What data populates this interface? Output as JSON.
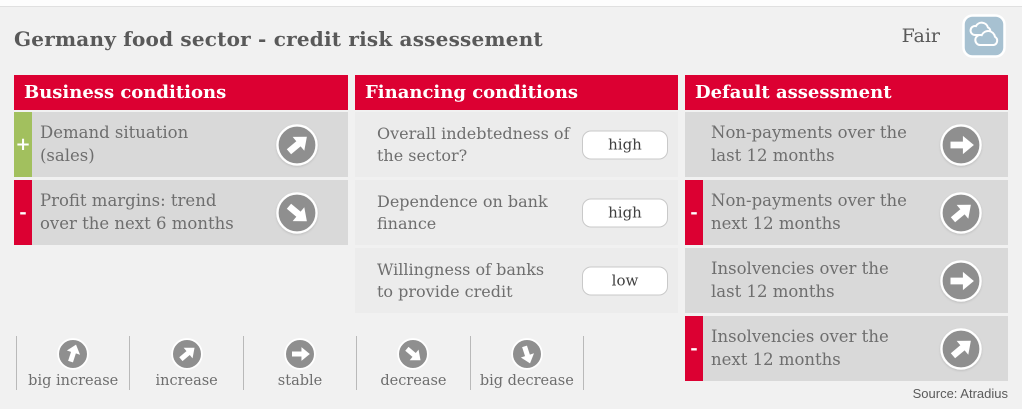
{
  "page": {
    "title": "Germany food sector - credit risk assessement",
    "rating_label": "Fair",
    "rating_icon": "clouds-icon",
    "source": "Source: Atradius"
  },
  "colors": {
    "accent_red": "#dc0032",
    "positive_green": "#a2c05e",
    "icon_gray": "#8f8f8f",
    "rating_blue": "#a7c1d1"
  },
  "columns": {
    "business": {
      "header": "Business conditions",
      "rows": [
        {
          "label": "Demand situation\n(sales)",
          "marker": "+",
          "marker_type": "positive",
          "trend": "increase"
        },
        {
          "label": "Profit margins: trend\nover the next 6 months",
          "marker": "-",
          "marker_type": "negative",
          "trend": "decrease"
        }
      ]
    },
    "financing": {
      "header": "Financing conditions",
      "rows": [
        {
          "label": "Overall indebtedness of\nthe sector?",
          "level": "high"
        },
        {
          "label": "Dependence on bank\nfinance",
          "level": "high"
        },
        {
          "label": "Willingness of banks\nto provide credit",
          "level": "low"
        }
      ]
    },
    "default": {
      "header": "Default assessment",
      "rows": [
        {
          "label": "Non-payments over the\nlast 12 months",
          "trend": "stable"
        },
        {
          "label": "Non-payments over the\nnext 12 months",
          "marker": "-",
          "marker_type": "negative",
          "trend": "increase"
        },
        {
          "label": "Insolvencies over the\nlast 12 months",
          "trend": "stable"
        },
        {
          "label": "Insolvencies over the\nnext 12 months",
          "marker": "-",
          "marker_type": "negative",
          "trend": "increase"
        }
      ]
    }
  },
  "legend": {
    "items": [
      {
        "label": "big increase",
        "trend": "big_increase"
      },
      {
        "label": "increase",
        "trend": "increase"
      },
      {
        "label": "stable",
        "trend": "stable"
      },
      {
        "label": "decrease",
        "trend": "decrease"
      },
      {
        "label": "big decrease",
        "trend": "big_decrease"
      }
    ]
  },
  "chart_data": {
    "type": "table",
    "title": "Germany food sector - credit risk assessement",
    "overall_rating": "Fair",
    "sections": [
      {
        "name": "Business conditions",
        "items": [
          {
            "item": "Demand situation (sales)",
            "sign": "+",
            "trend": "increase"
          },
          {
            "item": "Profit margins: trend over the next 6 months",
            "sign": "-",
            "trend": "decrease"
          }
        ]
      },
      {
        "name": "Financing conditions",
        "items": [
          {
            "item": "Overall indebtedness of the sector?",
            "value": "high"
          },
          {
            "item": "Dependence on bank finance",
            "value": "high"
          },
          {
            "item": "Willingness of banks to provide credit",
            "value": "low"
          }
        ]
      },
      {
        "name": "Default assessment",
        "items": [
          {
            "item": "Non-payments over the last 12 months",
            "trend": "stable"
          },
          {
            "item": "Non-payments over the next 12 months",
            "sign": "-",
            "trend": "increase"
          },
          {
            "item": "Insolvencies over the last 12 months",
            "trend": "stable"
          },
          {
            "item": "Insolvencies over the next 12 months",
            "sign": "-",
            "trend": "increase"
          }
        ]
      }
    ],
    "legend": [
      "big increase",
      "increase",
      "stable",
      "decrease",
      "big decrease"
    ],
    "source": "Source: Atradius"
  }
}
